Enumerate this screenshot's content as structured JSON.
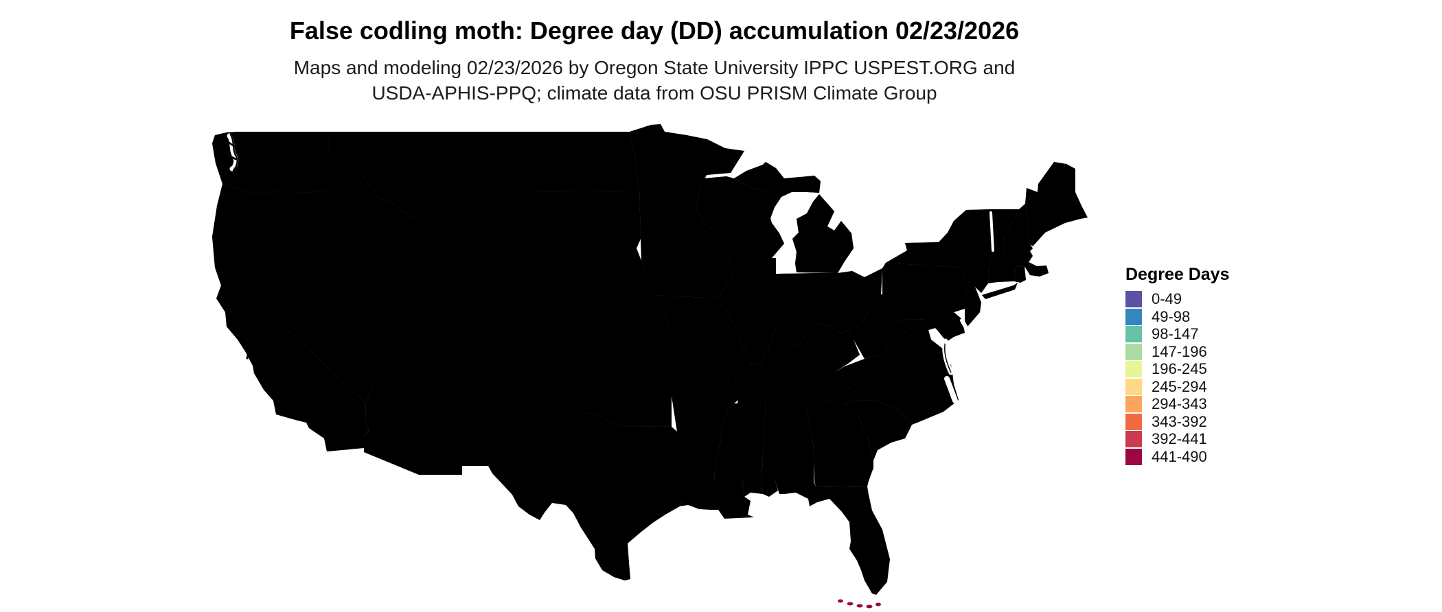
{
  "title": "False codling moth: Degree day (DD) accumulation 02/23/2026",
  "subtitle_line1": "Maps and modeling 02/23/2026 by Oregon State University IPPC USPEST.ORG and",
  "subtitle_line2": "USDA-APHIS-PPQ; climate data from OSU PRISM Climate Group",
  "legend": {
    "title": "Degree Days",
    "items": [
      {
        "label": "0-49",
        "color": "#5c52a4"
      },
      {
        "label": "49-98",
        "color": "#3486bc"
      },
      {
        "label": "98-147",
        "color": "#66c2a5"
      },
      {
        "label": "147-196",
        "color": "#aadca4"
      },
      {
        "label": "196-245",
        "color": "#e6f598"
      },
      {
        "label": "245-294",
        "color": "#fdd985"
      },
      {
        "label": "294-343",
        "color": "#fca55d"
      },
      {
        "label": "343-392",
        "color": "#f26943"
      },
      {
        "label": "392-441",
        "color": "#cc3a4f"
      },
      {
        "label": "441-490",
        "color": "#9c0742"
      }
    ]
  },
  "map_region": "Contiguous United States",
  "colors": {
    "background": "#ffffff",
    "state_border": "#060606",
    "water": "#ffffff"
  }
}
